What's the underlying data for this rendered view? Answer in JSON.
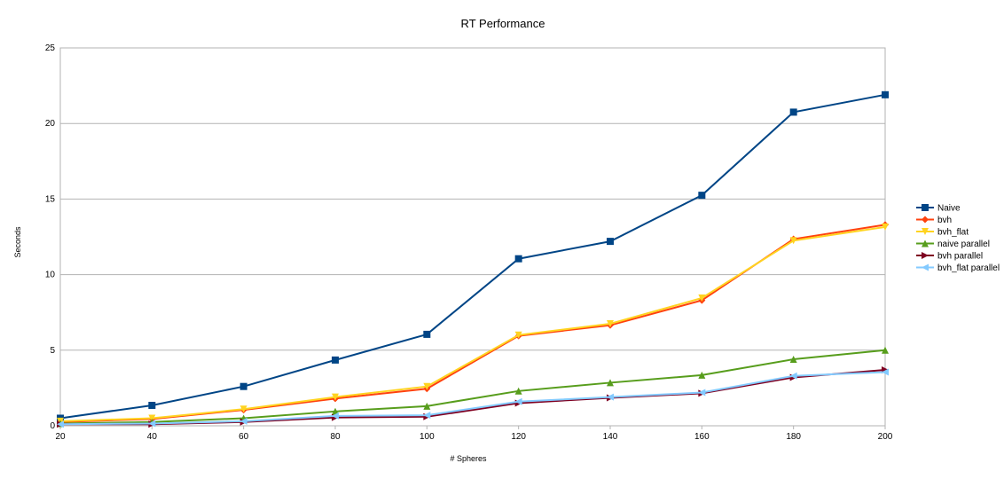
{
  "chart_data": {
    "type": "line",
    "title": "RT Performance",
    "xlabel": "# Spheres",
    "ylabel": "Seconds",
    "x": [
      20,
      40,
      60,
      80,
      100,
      120,
      140,
      160,
      180,
      200
    ],
    "xlim": [
      20,
      200
    ],
    "ylim": [
      0,
      25
    ],
    "yticks": [
      0,
      5,
      10,
      15,
      20,
      25
    ],
    "grid": true,
    "legend_position": "right",
    "series": [
      {
        "name": "Naive",
        "color": "#004586",
        "marker": "square",
        "values": [
          0.5,
          1.35,
          2.6,
          4.35,
          6.05,
          11.05,
          12.2,
          15.25,
          20.75,
          21.9
        ]
      },
      {
        "name": "bvh",
        "color": "#ff420e",
        "marker": "diamond",
        "values": [
          0.25,
          0.45,
          1.05,
          1.8,
          2.45,
          5.95,
          6.65,
          8.3,
          12.35,
          13.3
        ]
      },
      {
        "name": "bvh_flat",
        "color": "#ffd320",
        "marker": "triangle-down",
        "values": [
          0.3,
          0.5,
          1.1,
          1.9,
          2.6,
          6.0,
          6.75,
          8.45,
          12.25,
          13.15
        ]
      },
      {
        "name": "naive parallel",
        "color": "#579d1c",
        "marker": "triangle-up",
        "values": [
          0.15,
          0.25,
          0.5,
          0.95,
          1.3,
          2.3,
          2.85,
          3.35,
          4.4,
          5.0
        ]
      },
      {
        "name": "bvh parallel",
        "color": "#7e0021",
        "marker": "triangle-right",
        "values": [
          0.1,
          0.1,
          0.25,
          0.55,
          0.6,
          1.5,
          1.85,
          2.15,
          3.2,
          3.7
        ]
      },
      {
        "name": "bvh_flat parallel",
        "color": "#83caff",
        "marker": "triangle-left",
        "values": [
          0.1,
          0.15,
          0.3,
          0.65,
          0.7,
          1.6,
          1.9,
          2.2,
          3.3,
          3.55
        ]
      }
    ]
  }
}
